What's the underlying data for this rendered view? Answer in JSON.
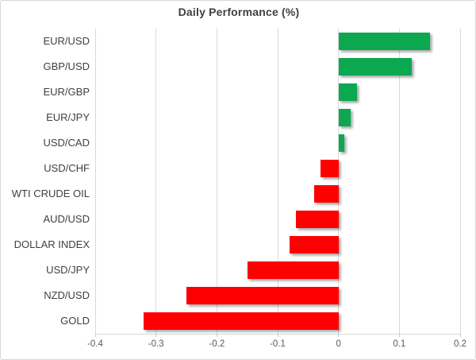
{
  "chart": {
    "title": "Daily Performance (%)"
  },
  "chart_data": {
    "type": "bar",
    "orientation": "horizontal",
    "title": "Daily Performance (%)",
    "categories": [
      "EUR/USD",
      "GBP/USD",
      "EUR/GBP",
      "EUR/JPY",
      "USD/CAD",
      "USD/CHF",
      "WTI CRUDE OIL",
      "AUD/USD",
      "DOLLAR INDEX",
      "USD/JPY",
      "NZD/USD",
      "GOLD"
    ],
    "values": [
      0.15,
      0.12,
      0.03,
      0.02,
      0.01,
      -0.03,
      -0.04,
      -0.07,
      -0.08,
      -0.15,
      -0.25,
      -0.32
    ],
    "xlabel": "",
    "ylabel": "",
    "xlim": [
      -0.4,
      0.2
    ],
    "xticks": [
      -0.4,
      -0.3,
      -0.2,
      -0.1,
      0,
      0.1,
      0.2
    ],
    "xtick_labels": [
      "-0.4",
      "-0.3",
      "-0.2",
      "-0.1",
      "0",
      "0.1",
      "0.2"
    ],
    "grid": "vertical",
    "legend": "none",
    "positive_color": "#0CA850",
    "negative_color": "#FE0000",
    "gridline_color": "#D9D9D9",
    "axis_label_color": "#595959",
    "category_label_color": "#404040",
    "title_color": "#3F3F3F"
  }
}
